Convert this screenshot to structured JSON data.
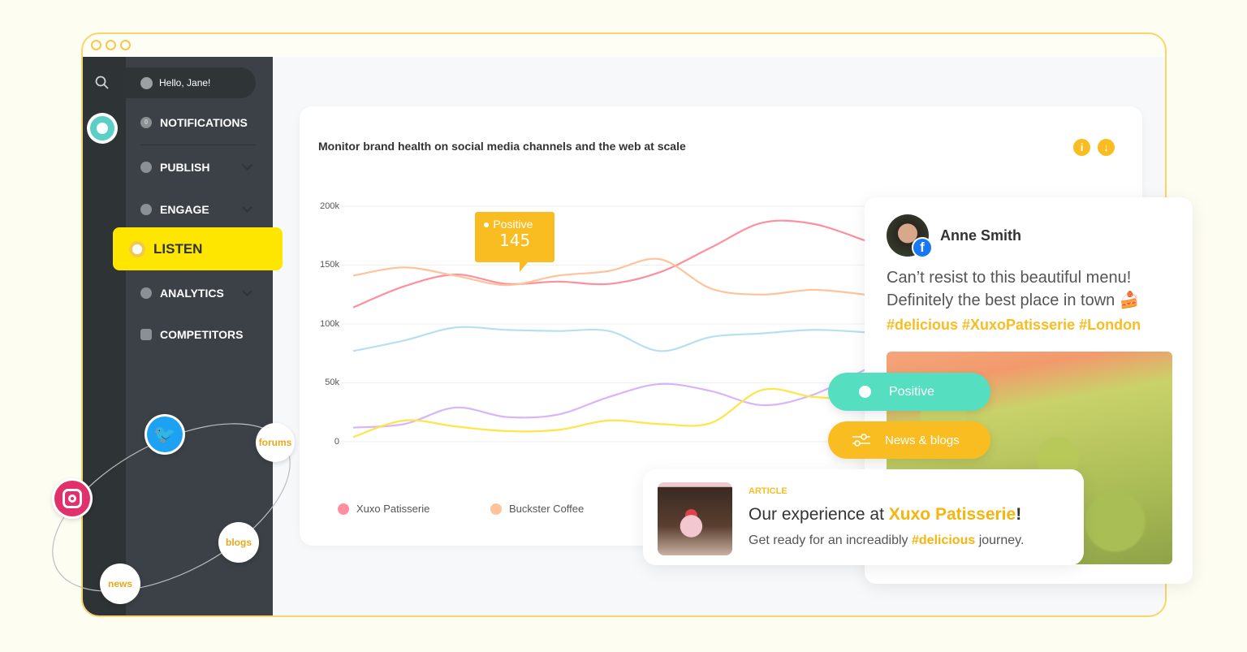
{
  "sidebar": {
    "greeting": "Hello, Jane!",
    "notification_count": "0",
    "items": [
      {
        "label": "NOTIFICATIONS"
      },
      {
        "label": "PUBLISH"
      },
      {
        "label": "ENGAGE"
      },
      {
        "label": "LISTEN",
        "active": true
      },
      {
        "label": "ANALYTICS"
      },
      {
        "label": "COMPETITORS"
      }
    ]
  },
  "chart_card": {
    "title": "Monitor brand health on social media channels and the web at scale",
    "tooltip": {
      "label": "Positive",
      "value": "145"
    }
  },
  "chart_data": {
    "type": "line",
    "yticks": [
      "200k",
      "150k",
      "100k",
      "50k",
      "0"
    ],
    "ylim": [
      0,
      200000
    ],
    "grid": true,
    "legend_placement": "bottom",
    "series": [
      {
        "name": "Xuxo Patisserie",
        "color": "#ff8f9f",
        "values": [
          114000,
          132000,
          142000,
          134000,
          136000,
          134000,
          144000,
          165000,
          186000,
          185000,
          171000
        ]
      },
      {
        "name": "Buckster Coffee",
        "color": "#ffc39b",
        "values": [
          141000,
          148000,
          141000,
          133000,
          141000,
          145000,
          155000,
          130000,
          125000,
          129000,
          125000
        ]
      },
      {
        "color": "#b6e0f2",
        "values": [
          77000,
          86000,
          97000,
          95000,
          94000,
          94000,
          77000,
          89000,
          92000,
          95000,
          93000
        ]
      },
      {
        "color": "#d9b4fb",
        "values": [
          12000,
          15000,
          29000,
          21000,
          23000,
          38000,
          49000,
          43000,
          31000,
          40000,
          61000
        ]
      },
      {
        "color": "#ffe44a",
        "values": [
          4000,
          18000,
          13000,
          9000,
          10000,
          18000,
          15000,
          16000,
          44000,
          38000,
          36000
        ]
      }
    ]
  },
  "post": {
    "author": "Anne Smith",
    "text_line1": "Can’t resist to this beautiful menu!",
    "text_line2": "Definitely the best place in town 🍰",
    "hashtags": "#delicious #XuxoPatisserie #London"
  },
  "filters": {
    "sentiment": "Positive",
    "source": "News & blogs"
  },
  "article": {
    "tag": "ARTICLE",
    "title_prefix": "Our experience at ",
    "title_brand": "Xuxo Patisserie",
    "title_suffix": "!",
    "desc_prefix": "Get ready for an increadibly ",
    "desc_tag": "#delicious",
    "desc_suffix": " journey."
  },
  "channels": [
    "forums",
    "blogs",
    "news"
  ],
  "colors": {
    "accent": "#ffe600",
    "positive": "#55dfc0",
    "source": "#f9bd22",
    "brand_text": "#f5b50f"
  }
}
